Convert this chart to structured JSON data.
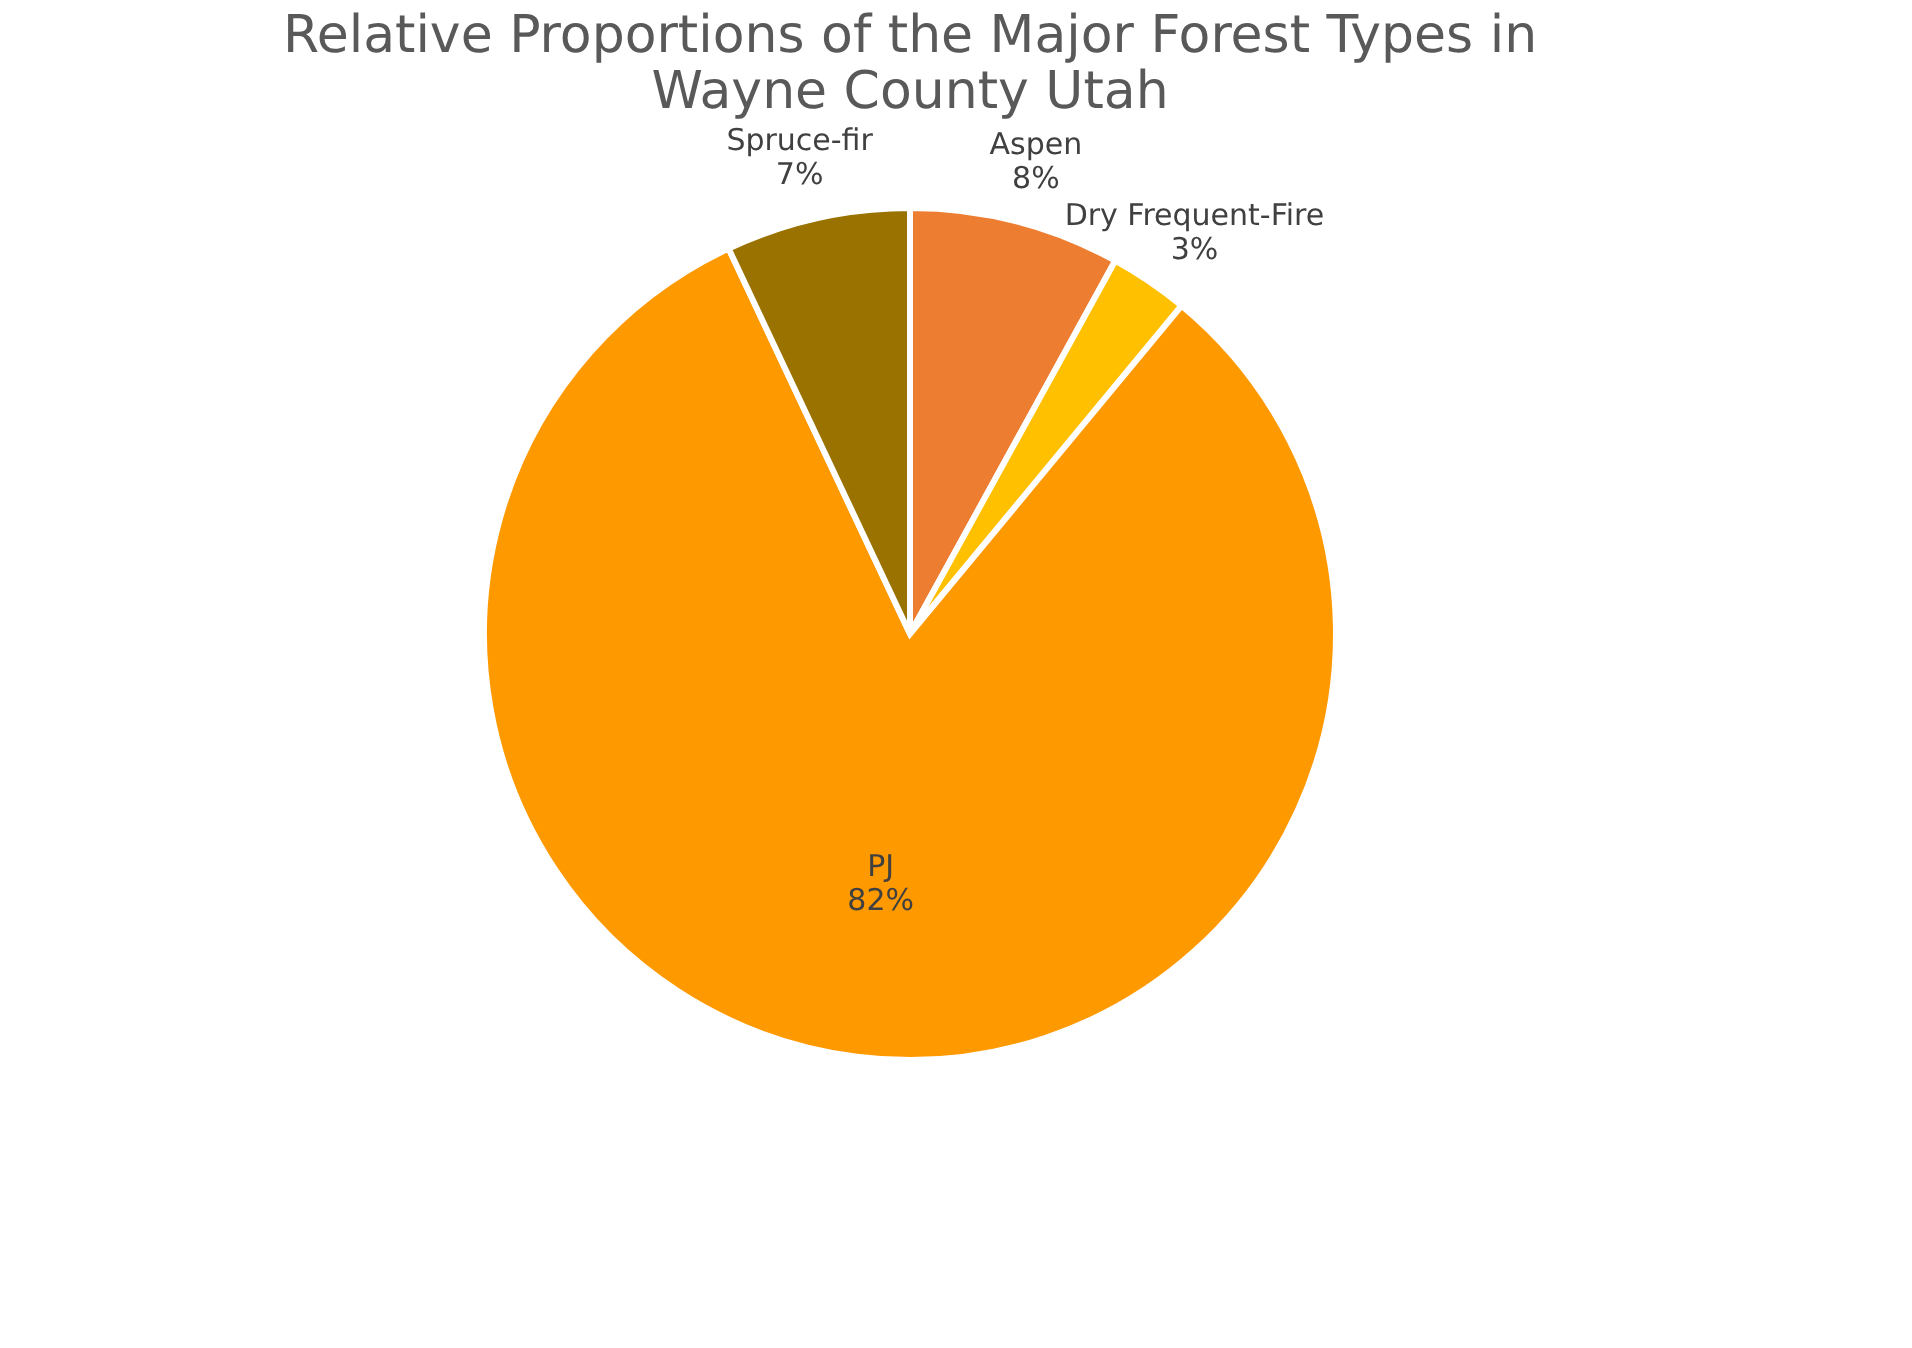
{
  "chart_data": {
    "type": "pie",
    "title": [
      "Relative Proportions of the Major Forest Types in",
      "Wayne County Utah"
    ],
    "categories": [
      "Aspen",
      "Dry Frequent-Fire",
      "PJ",
      "Spruce-fir"
    ],
    "values": [
      8,
      3,
      82,
      7
    ],
    "colors": [
      "#ed7d31",
      "#ffc000",
      "#ff9900",
      "#9a7200"
    ],
    "value_labels": [
      "8%",
      "3%",
      "82%",
      "7%"
    ],
    "legend": false
  }
}
